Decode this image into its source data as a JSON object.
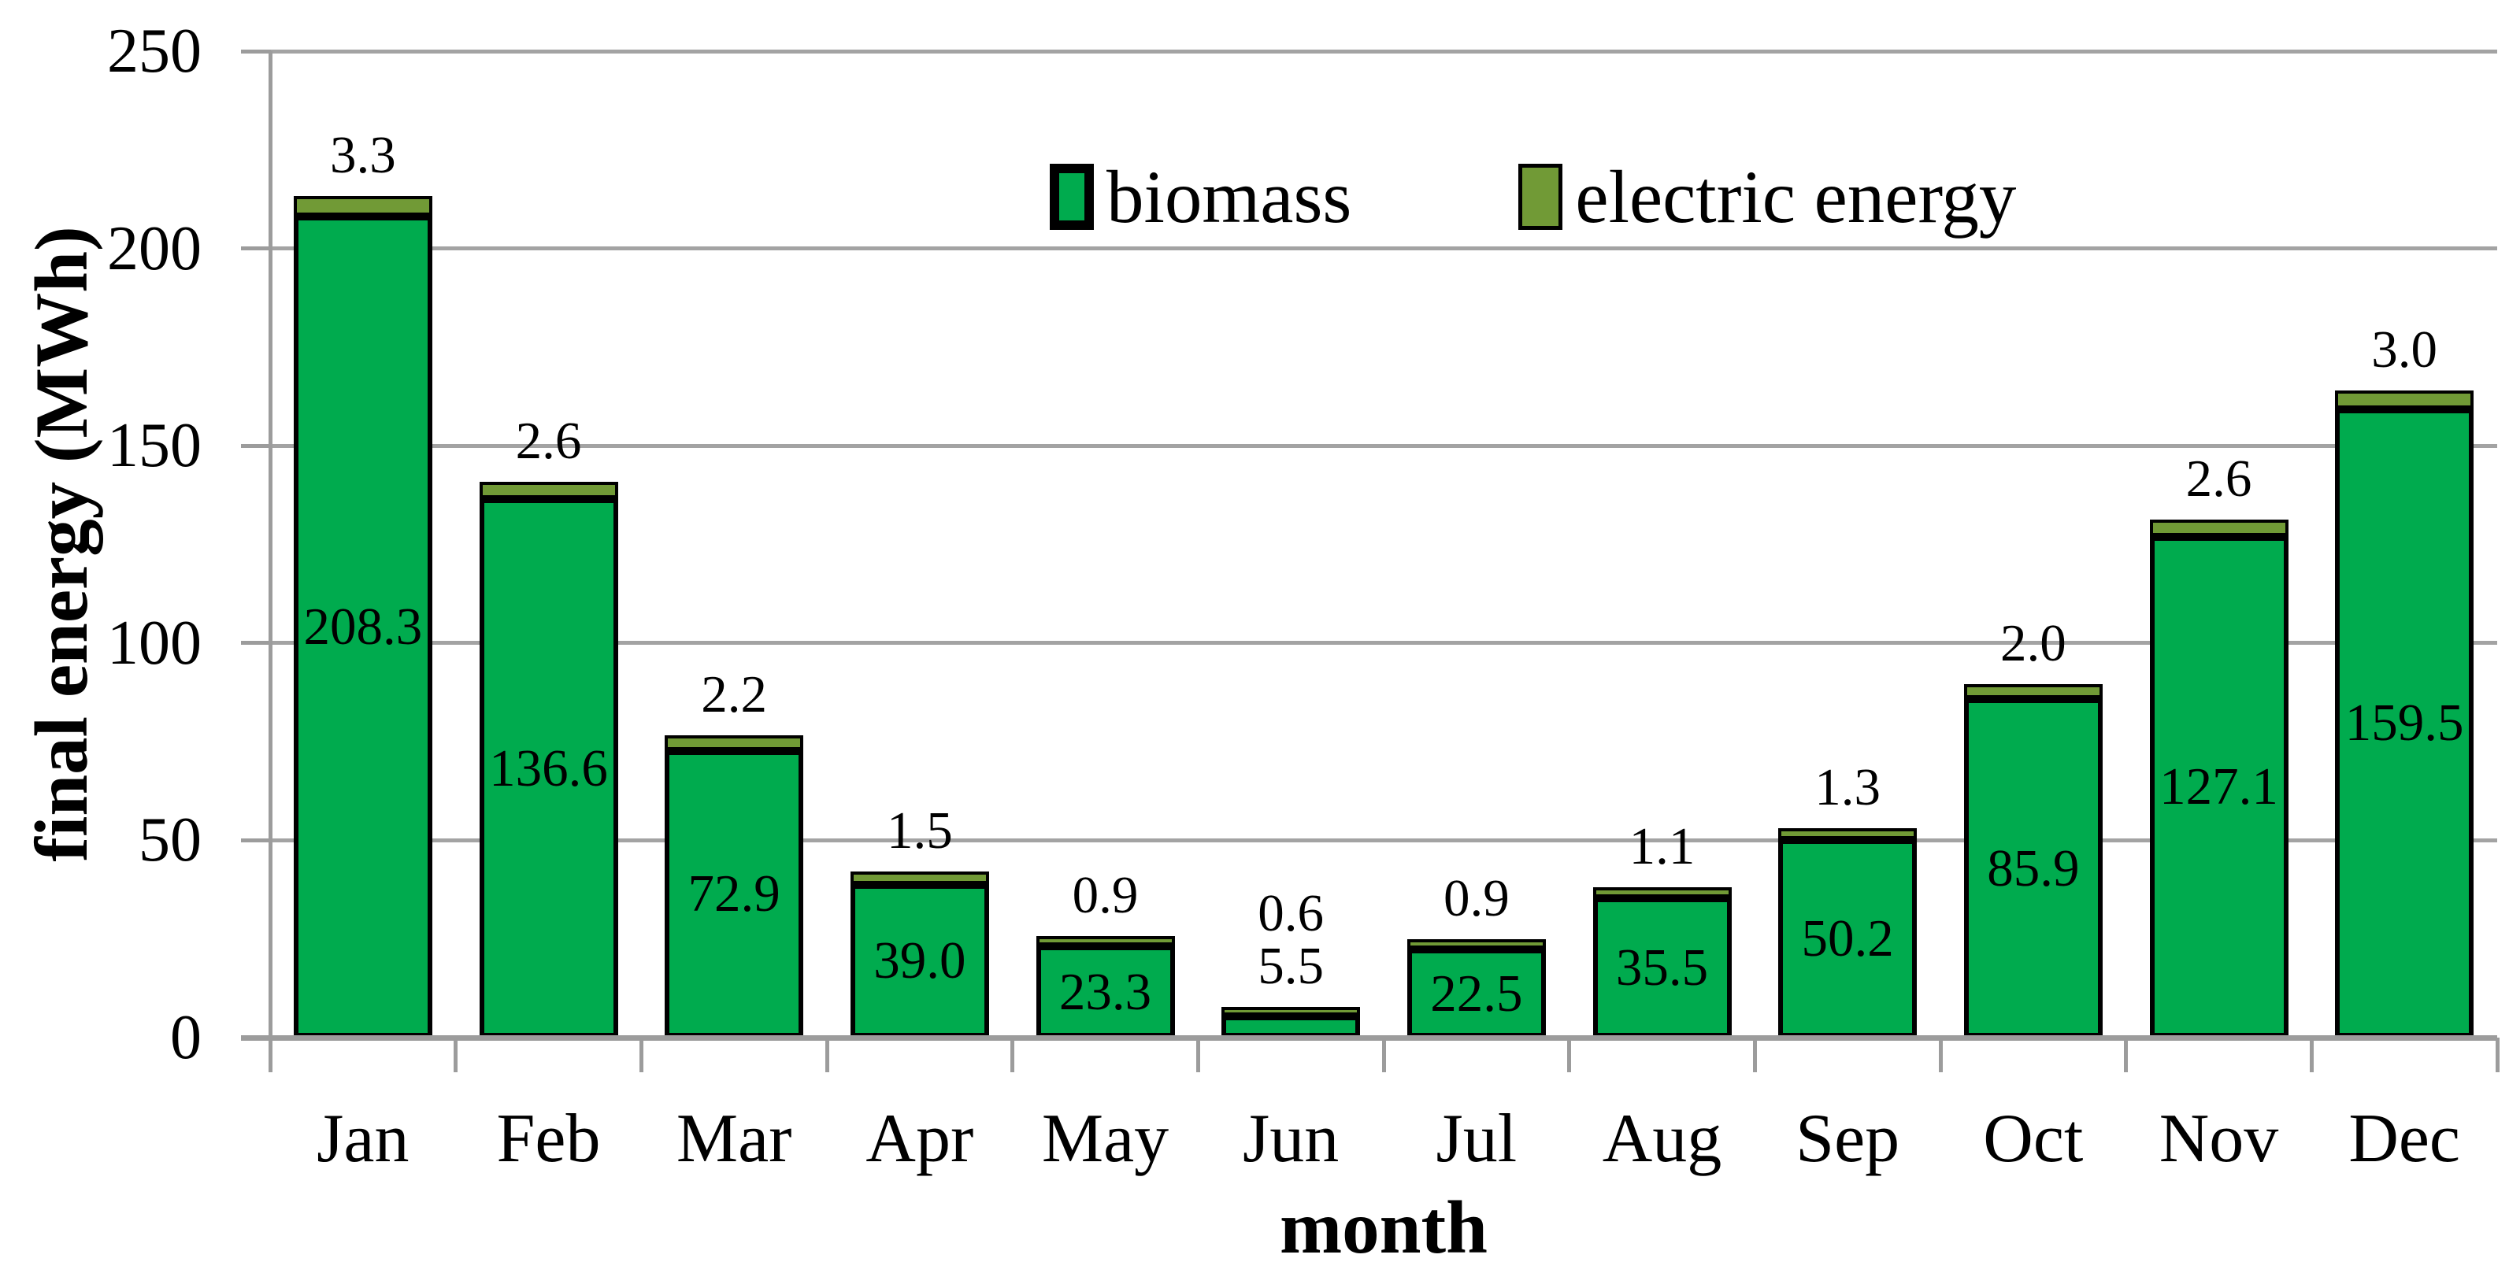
{
  "chart_data": {
    "type": "bar",
    "stacked": true,
    "title": "",
    "xlabel": "month",
    "ylabel": "final energy (MWh)",
    "ylim": [
      0,
      250
    ],
    "yticks": [
      0,
      50,
      100,
      150,
      200,
      250
    ],
    "grid": "horizontal",
    "legend_position": "top-center-inside",
    "value_label_decimals": 1,
    "categories": [
      "Jan",
      "Feb",
      "Mar",
      "Apr",
      "May",
      "Jun",
      "Jul",
      "Aug",
      "Sep",
      "Oct",
      "Nov",
      "Dec"
    ],
    "series": [
      {
        "name": "biomass",
        "color": "#00AB4E",
        "values": [
          208.3,
          136.6,
          72.9,
          39.0,
          23.3,
          5.5,
          22.5,
          35.5,
          50.2,
          85.9,
          127.1,
          159.5
        ]
      },
      {
        "name": "electric energy",
        "color": "#719A36",
        "values": [
          3.3,
          2.6,
          2.2,
          1.5,
          0.9,
          0.6,
          0.9,
          1.1,
          1.3,
          2.0,
          2.6,
          3.0
        ]
      }
    ],
    "bar_border_color": "#000000",
    "gridline_color": "#A3A3A3",
    "axis_color": "#9C9C9C",
    "text_color": "#000000"
  }
}
